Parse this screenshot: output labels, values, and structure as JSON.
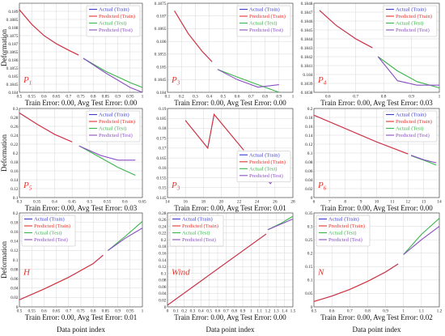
{
  "figure": {
    "ylabel": "Deformation",
    "xlabel": "Data point index",
    "legend_entries": [
      "Actual (Train)",
      "Predicted (Train)",
      "Actual (Test)",
      "Predicted (Test)"
    ],
    "colors": {
      "actual_train": "#3b3bd1",
      "predicted_train": "#e8332a",
      "actual_test": "#39b54a",
      "predicted_test": "#8a4fc4"
    }
  },
  "chart_data": [
    {
      "type": "line",
      "label": "P1",
      "title": "Train Error: 0.00, Avg Test Error: 0.00",
      "xlim": [
        0.5,
        1.0
      ],
      "ylim": [
        0.184,
        0.1895
      ],
      "xticks": [
        "0.5",
        "0.55",
        "0.6",
        "0.65",
        "0.7",
        "0.75",
        "0.8",
        "0.85",
        "0.9",
        "0.95",
        "1"
      ],
      "yticks": [
        "0.184",
        "0.1845",
        "0.185",
        "0.1855",
        "0.186",
        "0.1865",
        "0.187",
        "0.1875",
        "0.188",
        "0.1885",
        "0.189"
      ],
      "legend_position": "top-right",
      "series": [
        {
          "name": "Actual (Train)",
          "x": [
            0.5,
            0.55,
            0.6,
            0.65,
            0.7,
            0.74
          ],
          "y": [
            0.1891,
            0.1882,
            0.1875,
            0.187,
            0.1866,
            0.1863
          ]
        },
        {
          "name": "Predicted (Train)",
          "x": [
            0.5,
            0.55,
            0.6,
            0.65,
            0.7,
            0.74
          ],
          "y": [
            0.1891,
            0.1882,
            0.1875,
            0.187,
            0.1866,
            0.1863
          ]
        },
        {
          "name": "Actual (Test)",
          "x": [
            0.76,
            0.85,
            0.95,
            1.0
          ],
          "y": [
            0.1861,
            0.1853,
            0.1846,
            0.1843
          ]
        },
        {
          "name": "Predicted (Test)",
          "x": [
            0.76,
            0.85,
            0.95,
            1.0
          ],
          "y": [
            0.1861,
            0.1852,
            0.1843,
            0.184
          ]
        }
      ]
    },
    {
      "type": "line",
      "label": "P3",
      "title": "Train Error: 0.00, Avg Test Error: 0.00",
      "xlim": [
        0.1,
        1.0
      ],
      "ylim": [
        0.184,
        0.1875
      ],
      "xticks": [
        "0.1",
        "0.2",
        "0.3",
        "0.4",
        "0.5",
        "0.6",
        "0.7",
        "0.8",
        "0.9",
        "1"
      ],
      "yticks": [
        "0.184",
        "0.1845",
        "0.185",
        "0.1855",
        "0.186",
        "0.1865",
        "0.187",
        "0.1875"
      ],
      "legend_position": "top-right",
      "series": [
        {
          "name": "Actual (Train)",
          "x": [
            0.15,
            0.25,
            0.35,
            0.42
          ],
          "y": [
            0.1872,
            0.1863,
            0.1856,
            0.1852
          ]
        },
        {
          "name": "Predicted (Train)",
          "x": [
            0.15,
            0.25,
            0.35,
            0.42
          ],
          "y": [
            0.1872,
            0.1863,
            0.1856,
            0.1852
          ]
        },
        {
          "name": "Actual (Test)",
          "x": [
            0.46,
            0.6,
            0.75,
            0.9
          ],
          "y": [
            0.1849,
            0.1846,
            0.1843,
            0.184
          ]
        },
        {
          "name": "Predicted (Test)",
          "x": [
            0.46,
            0.6,
            0.75,
            0.9
          ],
          "y": [
            0.1849,
            0.1845,
            0.1842,
            0.1843
          ]
        }
      ]
    },
    {
      "type": "line",
      "label": "P4",
      "title": "Train Error: 0.00, Avg Test Error: 0.03",
      "xlim": [
        0.55,
        1.0
      ],
      "ylim": [
        0.1838,
        0.1848
      ],
      "xticks": [
        "0.6",
        "0.7",
        "0.8",
        "0.9",
        "1"
      ],
      "yticks": [
        "0.1838",
        "0.1839",
        "0.184",
        "0.1841",
        "0.1842",
        "0.1843",
        "0.1844",
        "0.1845",
        "0.1846",
        "0.1847",
        "0.1848"
      ],
      "legend_position": "top-right",
      "series": [
        {
          "name": "Actual (Train)",
          "x": [
            0.57,
            0.63,
            0.7,
            0.76
          ],
          "y": [
            0.18472,
            0.18455,
            0.1844,
            0.1843
          ]
        },
        {
          "name": "Predicted (Train)",
          "x": [
            0.57,
            0.63,
            0.7,
            0.76
          ],
          "y": [
            0.18472,
            0.18455,
            0.1844,
            0.1843
          ]
        },
        {
          "name": "Actual (Test)",
          "x": [
            0.78,
            0.85,
            0.92,
            1.0
          ],
          "y": [
            0.1842,
            0.18404,
            0.18392,
            0.18385
          ]
        },
        {
          "name": "Predicted (Test)",
          "x": [
            0.78,
            0.85,
            0.92,
            1.0
          ],
          "y": [
            0.1842,
            0.18393,
            0.18388,
            0.18388
          ]
        }
      ]
    },
    {
      "type": "line",
      "label": "P5",
      "title": "Train Error: 0.00, Avg Test Error: 0.03",
      "xlim": [
        0.3,
        0.65
      ],
      "ylim": [
        0.1,
        0.3
      ],
      "xticks": [
        "0.3",
        "0.35",
        "0.4",
        "0.45",
        "0.5",
        "0.55",
        "0.6",
        "0.65"
      ],
      "yticks": [
        "0.1",
        "0.12",
        "0.14",
        "0.16",
        "0.18",
        "0.2",
        "0.22",
        "0.24",
        "0.26",
        "0.28",
        "0.3"
      ],
      "legend_position": "top-right",
      "series": [
        {
          "name": "Actual (Train)",
          "x": [
            0.3,
            0.35,
            0.4,
            0.45
          ],
          "y": [
            0.29,
            0.265,
            0.242,
            0.225
          ]
        },
        {
          "name": "Predicted (Train)",
          "x": [
            0.3,
            0.35,
            0.4,
            0.45
          ],
          "y": [
            0.29,
            0.265,
            0.242,
            0.225
          ]
        },
        {
          "name": "Actual (Test)",
          "x": [
            0.47,
            0.53,
            0.58,
            0.63
          ],
          "y": [
            0.216,
            0.19,
            0.168,
            0.15
          ]
        },
        {
          "name": "Predicted (Test)",
          "x": [
            0.47,
            0.53,
            0.58,
            0.63
          ],
          "y": [
            0.216,
            0.195,
            0.184,
            0.184
          ]
        }
      ]
    },
    {
      "type": "line",
      "label": "P3",
      "title": "Train Error: 0.00, Avg Test Error: 0.01",
      "xlim": [
        14,
        28
      ],
      "ylim": [
        0.145,
        0.19
      ],
      "xticks": [
        "14",
        "16",
        "18",
        "20",
        "22",
        "24",
        "26",
        "28"
      ],
      "yticks": [
        "0.145",
        "0.15",
        "0.155",
        "0.16",
        "0.165",
        "0.17",
        "0.175",
        "0.18",
        "0.185",
        "0.19"
      ],
      "legend_position": "center-right",
      "series": [
        {
          "name": "Actual (Train)",
          "x": [
            16,
            18.5,
            19.2,
            22.5
          ],
          "y": [
            0.184,
            0.17,
            0.187,
            0.169
          ]
        },
        {
          "name": "Predicted (Train)",
          "x": [
            16,
            18.5,
            19.2,
            22.5
          ],
          "y": [
            0.184,
            0.17,
            0.187,
            0.169
          ]
        },
        {
          "name": "Actual (Test)",
          "x": [
            23.5,
            25.5,
            26.2,
            26.5
          ],
          "y": [
            0.161,
            0.153,
            0.16,
            0.165
          ]
        },
        {
          "name": "Predicted (Test)",
          "x": [
            23.5,
            25.5,
            26.2,
            26.5
          ],
          "y": [
            0.162,
            0.152,
            0.157,
            0.163
          ]
        }
      ]
    },
    {
      "type": "line",
      "label": "P6",
      "title": "Train Error: 0.00, Avg Test Error: 0.00",
      "xlim": [
        6,
        14
      ],
      "ylim": [
        0,
        0.2
      ],
      "xticks": [
        "6",
        "7",
        "8",
        "9",
        "10",
        "11",
        "12",
        "13",
        "14"
      ],
      "yticks": [
        "0",
        "0.02",
        "0.04",
        "0.06",
        "0.08",
        "0.1",
        "0.12",
        "0.14",
        "0.16",
        "0.18",
        "0.2"
      ],
      "legend_position": "top-right",
      "series": [
        {
          "name": "Actual (Train)",
          "x": [
            6,
            8,
            10,
            12
          ],
          "y": [
            0.185,
            0.155,
            0.125,
            0.098
          ]
        },
        {
          "name": "Predicted (Train)",
          "x": [
            6,
            8,
            10,
            12
          ],
          "y": [
            0.185,
            0.155,
            0.125,
            0.098
          ]
        },
        {
          "name": "Actual (Test)",
          "x": [
            12.2,
            13,
            13.8
          ],
          "y": [
            0.094,
            0.084,
            0.073
          ]
        },
        {
          "name": "Predicted (Test)",
          "x": [
            12.2,
            13,
            13.8
          ],
          "y": [
            0.095,
            0.085,
            0.078
          ]
        }
      ]
    },
    {
      "type": "line",
      "label": "H",
      "title": "Train Error: 0.00, Avg Test Error: 0.01",
      "xlim": [
        0.5,
        1.0
      ],
      "ylim": [
        0,
        0.2
      ],
      "xticks": [
        "0.5",
        "0.55",
        "0.6",
        "0.65",
        "0.7",
        "0.75",
        "0.8",
        "0.85",
        "0.9",
        "0.95",
        "1"
      ],
      "yticks": [
        "0",
        "0.02",
        "0.04",
        "0.06",
        "0.08",
        "0.1",
        "0.12",
        "0.14",
        "0.16",
        "0.18",
        "0.2"
      ],
      "legend_position": "top-left",
      "series": [
        {
          "name": "Actual (Train)",
          "x": [
            0.5,
            0.6,
            0.7,
            0.8,
            0.84
          ],
          "y": [
            0.015,
            0.038,
            0.063,
            0.092,
            0.11
          ]
        },
        {
          "name": "Predicted (Train)",
          "x": [
            0.5,
            0.6,
            0.7,
            0.8,
            0.84
          ],
          "y": [
            0.015,
            0.038,
            0.063,
            0.092,
            0.11
          ]
        },
        {
          "name": "Actual (Test)",
          "x": [
            0.86,
            0.93,
            1.0
          ],
          "y": [
            0.12,
            0.15,
            0.182
          ]
        },
        {
          "name": "Predicted (Test)",
          "x": [
            0.86,
            0.93,
            1.0
          ],
          "y": [
            0.12,
            0.146,
            0.168
          ]
        }
      ]
    },
    {
      "type": "line",
      "label": "Wind",
      "title": "Train Error: 0.00, Avg Test Error: 0.00",
      "xlim": [
        0,
        1.5
      ],
      "ylim": [
        0,
        0.28
      ],
      "xticks": [
        "0",
        "0.1",
        "0.2",
        "0.3",
        "0.4",
        "0.5",
        "0.6",
        "0.7",
        "0.8",
        "0.9",
        "1",
        "1.1",
        "1.2",
        "1.3",
        "1.4",
        "1.5"
      ],
      "yticks": [
        "0",
        "0.02",
        "0.04",
        "0.06",
        "0.08",
        "0.1",
        "0.12",
        "0.14",
        "0.16",
        "0.18",
        "0.2",
        "0.22",
        "0.24",
        "0.26",
        "0.28"
      ],
      "legend_position": "top-left",
      "series": [
        {
          "name": "Actual (Train)",
          "x": [
            0,
            0.5,
            1.0,
            1.18
          ],
          "y": [
            0.005,
            0.095,
            0.185,
            0.217
          ]
        },
        {
          "name": "Predicted (Train)",
          "x": [
            0,
            0.5,
            1.0,
            1.18
          ],
          "y": [
            0.005,
            0.095,
            0.185,
            0.217
          ]
        },
        {
          "name": "Actual (Test)",
          "x": [
            1.2,
            1.35,
            1.5
          ],
          "y": [
            0.23,
            0.248,
            0.27
          ]
        },
        {
          "name": "Predicted (Test)",
          "x": [
            1.2,
            1.35,
            1.5
          ],
          "y": [
            0.23,
            0.246,
            0.262
          ]
        }
      ]
    },
    {
      "type": "line",
      "label": "N",
      "title": "Train Error: 0.00, Avg Test Error: 0.02",
      "xlim": [
        0.5,
        1.2
      ],
      "ylim": [
        0,
        0.35
      ],
      "xticks": [
        "0.5",
        "0.6",
        "0.7",
        "0.8",
        "0.9",
        "1",
        "1.1",
        "1.2"
      ],
      "yticks": [
        "0",
        "0.05",
        "0.1",
        "0.15",
        "0.2",
        "0.25",
        "0.3",
        "0.35"
      ],
      "legend_position": "top-left",
      "series": [
        {
          "name": "Actual (Train)",
          "x": [
            0.5,
            0.6,
            0.7,
            0.8,
            0.9,
            0.97
          ],
          "y": [
            0.02,
            0.04,
            0.065,
            0.095,
            0.13,
            0.16
          ]
        },
        {
          "name": "Predicted (Train)",
          "x": [
            0.5,
            0.6,
            0.7,
            0.8,
            0.9,
            0.97
          ],
          "y": [
            0.02,
            0.04,
            0.065,
            0.095,
            0.13,
            0.16
          ]
        },
        {
          "name": "Actual (Test)",
          "x": [
            1.0,
            1.1,
            1.2
          ],
          "y": [
            0.195,
            0.27,
            0.33
          ]
        },
        {
          "name": "Predicted (Test)",
          "x": [
            1.0,
            1.1,
            1.2
          ],
          "y": [
            0.195,
            0.25,
            0.3
          ]
        }
      ]
    }
  ]
}
